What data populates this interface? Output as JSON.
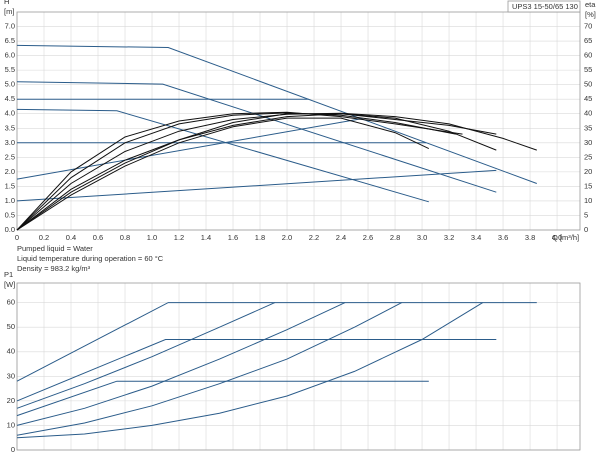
{
  "chart_data": [
    {
      "type": "line",
      "title": "UPS3 15-50/65  130",
      "ylabel": [
        "H",
        "[m]"
      ],
      "y2label": [
        "eta",
        "[%]"
      ],
      "xlabel": "Q [m³/h]",
      "notes": [
        "Pumped liquid = Water",
        "Liquid temperature during operation = 60 °C",
        "Density = 983.2 kg/m³"
      ],
      "grid": true,
      "xlim": [
        0,
        4.17
      ],
      "ylim": [
        0,
        7.5
      ],
      "y2lim": [
        0,
        75
      ],
      "xticks": [
        {
          "value": 0,
          "label": "0"
        },
        {
          "value": 0.2,
          "label": "0.2"
        },
        {
          "value": 0.4,
          "label": "0.4"
        },
        {
          "value": 0.6,
          "label": "0.6"
        },
        {
          "value": 0.8,
          "label": "0.8"
        },
        {
          "value": 1.0,
          "label": "1.0"
        },
        {
          "value": 1.2,
          "label": "1.2"
        },
        {
          "value": 1.4,
          "label": "1.4"
        },
        {
          "value": 1.6,
          "label": "1.6"
        },
        {
          "value": 1.8,
          "label": "1.8"
        },
        {
          "value": 2.0,
          "label": "2.0"
        },
        {
          "value": 2.2,
          "label": "2.2"
        },
        {
          "value": 2.4,
          "label": "2.4"
        },
        {
          "value": 2.6,
          "label": "2.6"
        },
        {
          "value": 2.8,
          "label": "2.8"
        },
        {
          "value": 3.0,
          "label": "3.0"
        },
        {
          "value": 3.2,
          "label": "3.2"
        },
        {
          "value": 3.4,
          "label": "3.4"
        },
        {
          "value": 3.6,
          "label": "3.6"
        },
        {
          "value": 3.8,
          "label": "3.8"
        },
        {
          "value": 4.0,
          "label": "4.0"
        }
      ],
      "yticks": [
        {
          "value": 0,
          "label": "0.0"
        },
        {
          "value": 0.5,
          "label": "0.5"
        },
        {
          "value": 1,
          "label": "1.0"
        },
        {
          "value": 1.5,
          "label": "1.5"
        },
        {
          "value": 2,
          "label": "2.0"
        },
        {
          "value": 2.5,
          "label": "2.5"
        },
        {
          "value": 3,
          "label": "3.0"
        },
        {
          "value": 3.5,
          "label": "3.5"
        },
        {
          "value": 4,
          "label": "4.0"
        },
        {
          "value": 4.5,
          "label": "4.5"
        },
        {
          "value": 5,
          "label": "5.0"
        },
        {
          "value": 5.5,
          "label": "5.5"
        },
        {
          "value": 6,
          "label": "6.0"
        },
        {
          "value": 6.5,
          "label": "6.5"
        },
        {
          "value": 7,
          "label": "7.0"
        }
      ],
      "y2ticks": [
        0,
        5,
        10,
        15,
        20,
        25,
        30,
        35,
        40,
        45,
        50,
        55,
        60,
        65,
        70
      ],
      "series": [
        {
          "color": "#2b5c8a",
          "x": [
            0,
            1.12,
            3.85
          ],
          "values": [
            6.35,
            6.28,
            1.6
          ]
        },
        {
          "color": "#2b5c8a",
          "x": [
            0,
            1.08,
            3.55
          ],
          "values": [
            5.1,
            5.02,
            1.3
          ]
        },
        {
          "color": "#2b5c8a",
          "x": [
            0,
            0.74,
            3.05
          ],
          "values": [
            4.15,
            4.1,
            0.97
          ]
        },
        {
          "color": "#2b5c8a",
          "x": [
            0,
            2.16
          ],
          "values": [
            4.5,
            4.5
          ]
        },
        {
          "color": "#2b5c8a",
          "x": [
            0,
            3.03
          ],
          "values": [
            3.0,
            3.0
          ]
        },
        {
          "color": "#2b5c8a",
          "x": [
            0,
            2.55
          ],
          "values": [
            1.75,
            3.83
          ]
        },
        {
          "color": "#2b5c8a",
          "x": [
            0,
            3.55
          ],
          "values": [
            1.0,
            2.05
          ]
        },
        {
          "color": "#111111",
          "axis": "y2",
          "x": [
            0,
            0.4,
            0.8,
            1.2,
            1.6,
            2.0,
            2.4,
            2.8,
            3.2,
            3.6,
            3.85
          ],
          "values": [
            0,
            16,
            27,
            34,
            38,
            39.8,
            40.2,
            39,
            36.5,
            31.5,
            27.5
          ]
        },
        {
          "color": "#111111",
          "axis": "y2",
          "x": [
            0,
            0.4,
            0.8,
            1.2,
            1.6,
            2.0,
            2.4,
            2.8,
            3.2,
            3.55
          ],
          "values": [
            0,
            14,
            24,
            31,
            36,
            39,
            40,
            38.5,
            34,
            27.5
          ]
        },
        {
          "color": "#111111",
          "axis": "y2",
          "x": [
            0,
            0.4,
            0.8,
            1.2,
            1.6,
            2.0,
            2.4,
            2.8,
            3.05
          ],
          "values": [
            0,
            12,
            22,
            30,
            35.5,
            38.5,
            38.5,
            33.5,
            28
          ]
        },
        {
          "color": "#111111",
          "axis": "y2",
          "x": [
            0,
            0.4,
            0.8,
            1.2,
            1.6,
            2.0,
            2.4,
            2.8,
            3.2,
            3.55
          ],
          "values": [
            0,
            13,
            23,
            31,
            37,
            40,
            40,
            38,
            36,
            33
          ]
        },
        {
          "color": "#111111",
          "axis": "y2",
          "x": [
            0,
            0.4,
            0.8,
            1.2,
            1.6,
            2.0,
            2.4,
            2.8,
            3.25
          ],
          "values": [
            0,
            18,
            30,
            36.5,
            39.5,
            40.3,
            39.5,
            37,
            33
          ]
        },
        {
          "color": "#111111",
          "axis": "y2",
          "x": [
            0,
            0.4,
            0.8,
            1.2,
            1.6,
            2.0,
            2.4,
            2.8,
            3.3
          ],
          "values": [
            0,
            20,
            32,
            37.5,
            40,
            40.5,
            39,
            36.5,
            33
          ]
        }
      ]
    },
    {
      "type": "line",
      "ylabel": [
        "P1",
        "[W]"
      ],
      "grid": true,
      "xlim": [
        0,
        4.17
      ],
      "ylim": [
        0,
        68
      ],
      "xticks": [
        0,
        0.2,
        0.4,
        0.6,
        0.8,
        1.0,
        1.2,
        1.4,
        1.6,
        1.8,
        2.0,
        2.2,
        2.4,
        2.6,
        2.8,
        3.0,
        3.2,
        3.4,
        3.6,
        3.8,
        4.0
      ],
      "yticks": [
        0,
        10,
        20,
        30,
        40,
        50,
        60
      ],
      "series": [
        {
          "color": "#2b5c8a",
          "x": [
            0,
            1.12,
            3.85
          ],
          "values": [
            28,
            60,
            60
          ]
        },
        {
          "color": "#2b5c8a",
          "x": [
            0,
            1.1,
            3.55
          ],
          "values": [
            20,
            45,
            45
          ]
        },
        {
          "color": "#2b5c8a",
          "x": [
            0,
            0.74,
            3.05
          ],
          "values": [
            14,
            28,
            28
          ]
        },
        {
          "color": "#2b5c8a",
          "x": [
            0,
            0.5,
            1.0,
            1.5,
            1.91
          ],
          "values": [
            17,
            27,
            38,
            50,
            60
          ]
        },
        {
          "color": "#2b5c8a",
          "x": [
            0,
            0.5,
            1.0,
            1.5,
            2.0,
            2.43
          ],
          "values": [
            10,
            17,
            26,
            37,
            49,
            60
          ]
        },
        {
          "color": "#2b5c8a",
          "x": [
            0,
            0.5,
            1.0,
            1.5,
            2.0,
            2.5,
            2.85
          ],
          "values": [
            6,
            11,
            18,
            27,
            37,
            50,
            60
          ]
        },
        {
          "color": "#2b5c8a",
          "x": [
            0,
            0.5,
            1.0,
            1.5,
            2.0,
            2.5,
            3.0,
            3.45
          ],
          "values": [
            5,
            6.5,
            10,
            15,
            22,
            32,
            45,
            60
          ]
        }
      ]
    }
  ]
}
